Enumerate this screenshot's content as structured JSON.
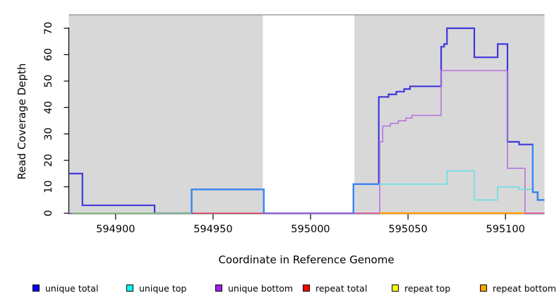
{
  "chart_data": {
    "type": "line",
    "subtype": "step-coverage",
    "title": "",
    "xlabel": "Coordinate in Reference Genome",
    "ylabel": "Read Coverage Depth",
    "xlim": [
      594876,
      595120
    ],
    "ylim": [
      0,
      75
    ],
    "grid": false,
    "x_ticks": [
      594900,
      594950,
      595000,
      595050,
      595100
    ],
    "x_tick_labels": [
      "594900",
      "594950",
      "595000",
      "595050",
      "595100"
    ],
    "y_ticks": [
      0,
      10,
      20,
      30,
      40,
      50,
      60,
      70
    ],
    "y_tick_labels": [
      "0",
      "10",
      "20",
      "30",
      "40",
      "50",
      "60",
      "70"
    ],
    "shade_color": "#d8d8d8",
    "shade_border_color": "#8d8d8d",
    "background_shaded_regions": [
      [
        594876,
        594975.5
      ],
      [
        595022.5,
        595120
      ]
    ],
    "white_gap_region": [
      594975.5,
      595022.5
    ],
    "series": [
      {
        "name": "unique total",
        "color": "#3f38da",
        "width": 2.2,
        "points": [
          [
            594876,
            15
          ],
          [
            594883,
            15
          ],
          [
            594883,
            3
          ],
          [
            594920,
            3
          ],
          [
            594920,
            0
          ],
          [
            594939,
            0
          ],
          [
            594939,
            9
          ],
          [
            594976,
            9
          ],
          [
            594976,
            0
          ],
          [
            595022,
            0
          ],
          [
            595022,
            11
          ],
          [
            595035,
            11
          ],
          [
            595035,
            44
          ],
          [
            595040,
            44
          ],
          [
            595040,
            45
          ],
          [
            595044,
            45
          ],
          [
            595044,
            46
          ],
          [
            595048,
            46
          ],
          [
            595048,
            47
          ],
          [
            595051,
            47
          ],
          [
            595051,
            48
          ],
          [
            595067,
            48
          ],
          [
            595067,
            63
          ],
          [
            595068.5,
            63
          ],
          [
            595068.5,
            64
          ],
          [
            595070,
            64
          ],
          [
            595070,
            70
          ],
          [
            595084,
            70
          ],
          [
            595084,
            59
          ],
          [
            595096,
            59
          ],
          [
            595096,
            64
          ],
          [
            595101,
            64
          ],
          [
            595101,
            27
          ],
          [
            595107,
            27
          ],
          [
            595107,
            26
          ],
          [
            595114,
            26
          ],
          [
            595114,
            8
          ],
          [
            595116.5,
            8
          ],
          [
            595116.5,
            5
          ],
          [
            595120,
            5
          ]
        ]
      },
      {
        "name": "unique bottom",
        "color": "#b36fdd",
        "width": 1.5,
        "points": [
          [
            594876,
            0
          ],
          [
            595035.5,
            0
          ],
          [
            595035.5,
            27
          ],
          [
            595037,
            27
          ],
          [
            595037,
            33
          ],
          [
            595041,
            33
          ],
          [
            595041,
            34
          ],
          [
            595045,
            34
          ],
          [
            595045,
            35
          ],
          [
            595049,
            35
          ],
          [
            595049,
            36
          ],
          [
            595052,
            36
          ],
          [
            595052,
            37
          ],
          [
            595067,
            37
          ],
          [
            595067,
            54
          ],
          [
            595101,
            54
          ],
          [
            595101,
            17
          ],
          [
            595110,
            17
          ],
          [
            595110,
            0
          ],
          [
            595120,
            0
          ]
        ]
      },
      {
        "name": "baseline green",
        "color": "#7cc77c",
        "width": 1.8,
        "points": [
          [
            594878,
            0
          ],
          [
            594939,
            0
          ]
        ]
      },
      {
        "name": "baseline red",
        "color": "#dd5168",
        "width": 1.8,
        "points": [
          [
            594939,
            0
          ],
          [
            594976,
            0
          ]
        ]
      },
      {
        "name": "baseline pink left",
        "color": "#dd5f9d",
        "width": 1.8,
        "points": [
          [
            595023,
            0
          ],
          [
            595035.5,
            0
          ]
        ]
      },
      {
        "name": "baseline pink right",
        "color": "#dd5f9d",
        "width": 1.8,
        "points": [
          [
            595110,
            0
          ],
          [
            595120,
            0
          ]
        ]
      },
      {
        "name": "repeat bottom baseline",
        "color": "#ff9c05",
        "width": 2.4,
        "points": [
          [
            595035.5,
            0
          ],
          [
            595110,
            0
          ]
        ]
      },
      {
        "name": "unique top",
        "color": "#5fe2e6",
        "width": 1.5,
        "points": [
          [
            595035,
            11
          ],
          [
            595070,
            11
          ],
          [
            595070,
            16
          ],
          [
            595084,
            16
          ],
          [
            595084,
            5
          ],
          [
            595096,
            5
          ],
          [
            595096,
            10
          ],
          [
            595107,
            10
          ],
          [
            595107,
            9
          ],
          [
            595114,
            9
          ],
          [
            595114,
            8
          ],
          [
            595116.5,
            8
          ],
          [
            595116.5,
            5
          ],
          [
            595120,
            5
          ]
        ]
      },
      {
        "name": "total-top overlap a",
        "color": "#3489f2",
        "width": 2.2,
        "points": [
          [
            594939,
            0
          ],
          [
            594939,
            9
          ],
          [
            594976,
            9
          ],
          [
            594976,
            0
          ]
        ]
      },
      {
        "name": "total-top overlap b",
        "color": "#3489f2",
        "width": 2.2,
        "points": [
          [
            595022,
            0
          ],
          [
            595022,
            11
          ],
          [
            595035,
            11
          ]
        ]
      },
      {
        "name": "total-top overlap c",
        "color": "#3489f2",
        "width": 2.2,
        "points": [
          [
            595114,
            26
          ],
          [
            595114,
            8
          ],
          [
            595116.5,
            8
          ],
          [
            595116.5,
            5
          ],
          [
            595120,
            5
          ]
        ]
      }
    ],
    "legend": {
      "items": [
        {
          "label": "unique total",
          "color": "#0000ff"
        },
        {
          "label": "unique top",
          "color": "#00ffff"
        },
        {
          "label": "unique bottom",
          "color": "#a020f0"
        },
        {
          "label": "repeat total",
          "color": "#ff0000"
        },
        {
          "label": "repeat top",
          "color": "#ffff00"
        },
        {
          "label": "repeat bottom",
          "color": "#ffa500"
        }
      ]
    }
  }
}
